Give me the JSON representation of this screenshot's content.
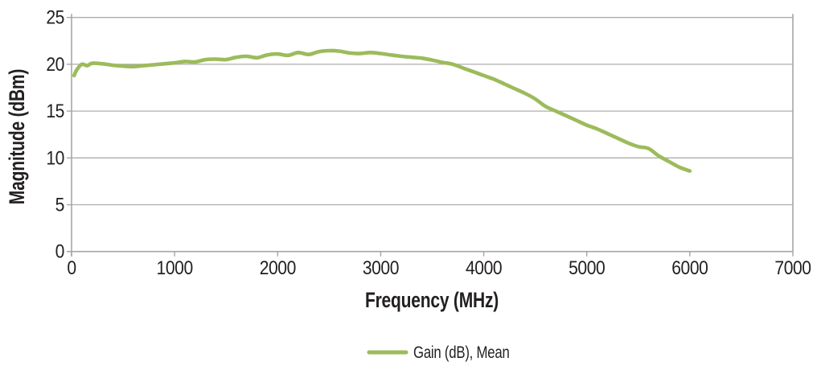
{
  "chart_data": {
    "type": "line",
    "title": "",
    "xlabel": "Frequency (MHz)",
    "ylabel": "Magnitude (dBm)",
    "xlim": [
      0,
      7000
    ],
    "ylim": [
      0,
      25
    ],
    "x_ticks": [
      0,
      1000,
      2000,
      3000,
      4000,
      5000,
      6000,
      7000
    ],
    "y_ticks": [
      0,
      5,
      10,
      15,
      20,
      25
    ],
    "grid": "horizontal",
    "legend_position": "bottom-center",
    "series": [
      {
        "name": "Gain (dB), Mean",
        "color": "#9CBB5C",
        "x": [
          25,
          50,
          100,
          150,
          200,
          300,
          400,
          500,
          600,
          700,
          800,
          900,
          1000,
          1100,
          1200,
          1300,
          1400,
          1500,
          1600,
          1700,
          1800,
          1900,
          2000,
          2100,
          2200,
          2300,
          2400,
          2500,
          2600,
          2700,
          2800,
          2900,
          3000,
          3100,
          3200,
          3300,
          3400,
          3500,
          3600,
          3700,
          3800,
          3900,
          4000,
          4100,
          4200,
          4300,
          4400,
          4500,
          4600,
          4700,
          4800,
          4900,
          5000,
          5100,
          5200,
          5300,
          5400,
          5500,
          5600,
          5700,
          5800,
          5900,
          6000
        ],
        "y": [
          18.8,
          19.4,
          20.0,
          19.85,
          20.1,
          20.05,
          19.9,
          19.8,
          19.75,
          19.85,
          19.95,
          20.05,
          20.15,
          20.3,
          20.25,
          20.5,
          20.55,
          20.5,
          20.75,
          20.85,
          20.7,
          21.0,
          21.1,
          20.95,
          21.25,
          21.05,
          21.35,
          21.45,
          21.4,
          21.2,
          21.15,
          21.25,
          21.15,
          21.0,
          20.85,
          20.75,
          20.65,
          20.45,
          20.2,
          20.0,
          19.6,
          19.2,
          18.8,
          18.4,
          17.9,
          17.4,
          16.9,
          16.3,
          15.5,
          15.0,
          14.5,
          14.0,
          13.5,
          13.1,
          12.6,
          12.1,
          11.6,
          11.2,
          11.0,
          10.2,
          9.6,
          9.0,
          8.6
        ]
      }
    ]
  },
  "colors": {
    "line": "#9CBB5C",
    "grid": "#ADADAD",
    "axis": "#A6A6A6",
    "text": "#231F1F",
    "background": "#FFFFFF"
  }
}
